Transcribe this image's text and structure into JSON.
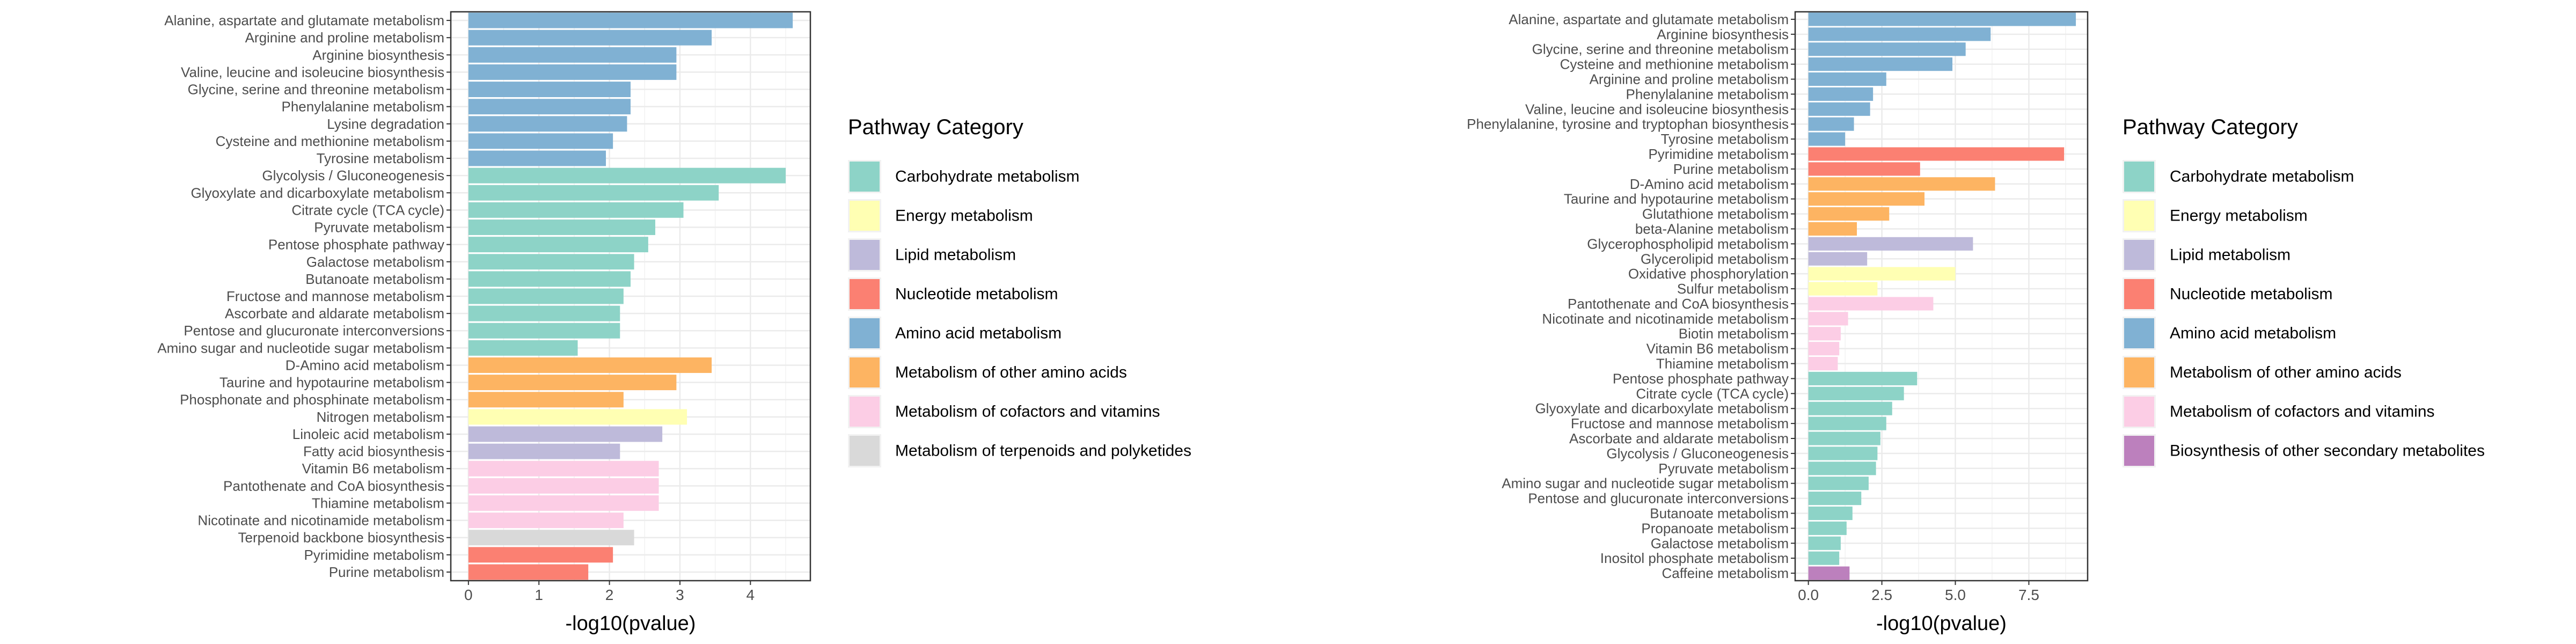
{
  "chart_data": [
    {
      "type": "bar",
      "orientation": "horizontal",
      "xlabel": "-log10(pvalue)",
      "ylabel": "",
      "xlim": [
        -0.25,
        4.85
      ],
      "xticks": [
        0,
        1,
        2,
        3,
        4
      ],
      "grid": true,
      "legend_title": "Pathway Category",
      "legend_position": "right",
      "legend": [
        {
          "name": "Carbohydrate metabolism",
          "color": "#8DD3C7"
        },
        {
          "name": "Energy metabolism",
          "color": "#FFFFB3"
        },
        {
          "name": "Lipid metabolism",
          "color": "#BEBADA"
        },
        {
          "name": "Nucleotide metabolism",
          "color": "#FB8072"
        },
        {
          "name": "Amino acid metabolism",
          "color": "#80B1D3"
        },
        {
          "name": "Metabolism of other amino acids",
          "color": "#FDB462"
        },
        {
          "name": "Metabolism of cofactors and vitamins",
          "color": "#FCCDE5"
        },
        {
          "name": "Metabolism of terpenoids and polyketides",
          "color": "#D9D9D9"
        }
      ],
      "bars": [
        {
          "label": "Alanine, aspartate and glutamate metabolism",
          "value": 4.6,
          "category": "Amino acid metabolism"
        },
        {
          "label": "Arginine and proline metabolism",
          "value": 3.45,
          "category": "Amino acid metabolism"
        },
        {
          "label": "Arginine biosynthesis",
          "value": 2.95,
          "category": "Amino acid metabolism"
        },
        {
          "label": "Valine, leucine and isoleucine biosynthesis",
          "value": 2.95,
          "category": "Amino acid metabolism"
        },
        {
          "label": "Glycine, serine and threonine metabolism",
          "value": 2.3,
          "category": "Amino acid metabolism"
        },
        {
          "label": "Phenylalanine metabolism",
          "value": 2.3,
          "category": "Amino acid metabolism"
        },
        {
          "label": "Lysine degradation",
          "value": 2.25,
          "category": "Amino acid metabolism"
        },
        {
          "label": "Cysteine and methionine metabolism",
          "value": 2.05,
          "category": "Amino acid metabolism"
        },
        {
          "label": "Tyrosine metabolism",
          "value": 1.95,
          "category": "Amino acid metabolism"
        },
        {
          "label": "Glycolysis / Gluconeogenesis",
          "value": 4.5,
          "category": "Carbohydrate metabolism"
        },
        {
          "label": "Glyoxylate and dicarboxylate metabolism",
          "value": 3.55,
          "category": "Carbohydrate metabolism"
        },
        {
          "label": "Citrate cycle (TCA cycle)",
          "value": 3.05,
          "category": "Carbohydrate metabolism"
        },
        {
          "label": "Pyruvate metabolism",
          "value": 2.65,
          "category": "Carbohydrate metabolism"
        },
        {
          "label": "Pentose phosphate pathway",
          "value": 2.55,
          "category": "Carbohydrate metabolism"
        },
        {
          "label": "Galactose metabolism",
          "value": 2.35,
          "category": "Carbohydrate metabolism"
        },
        {
          "label": "Butanoate metabolism",
          "value": 2.3,
          "category": "Carbohydrate metabolism"
        },
        {
          "label": "Fructose and mannose metabolism",
          "value": 2.2,
          "category": "Carbohydrate metabolism"
        },
        {
          "label": "Ascorbate and aldarate metabolism",
          "value": 2.15,
          "category": "Carbohydrate metabolism"
        },
        {
          "label": "Pentose and glucuronate interconversions",
          "value": 2.15,
          "category": "Carbohydrate metabolism"
        },
        {
          "label": "Amino sugar and nucleotide sugar metabolism",
          "value": 1.55,
          "category": "Carbohydrate metabolism"
        },
        {
          "label": "D-Amino acid metabolism",
          "value": 3.45,
          "category": "Metabolism of other amino acids"
        },
        {
          "label": "Taurine and hypotaurine metabolism",
          "value": 2.95,
          "category": "Metabolism of other amino acids"
        },
        {
          "label": "Phosphonate and phosphinate metabolism",
          "value": 2.2,
          "category": "Metabolism of other amino acids"
        },
        {
          "label": "Nitrogen metabolism",
          "value": 3.1,
          "category": "Energy metabolism"
        },
        {
          "label": "Linoleic acid metabolism",
          "value": 2.75,
          "category": "Lipid metabolism"
        },
        {
          "label": "Fatty acid biosynthesis",
          "value": 2.15,
          "category": "Lipid metabolism"
        },
        {
          "label": "Vitamin B6 metabolism",
          "value": 2.7,
          "category": "Metabolism of cofactors and vitamins"
        },
        {
          "label": "Pantothenate and CoA biosynthesis",
          "value": 2.7,
          "category": "Metabolism of cofactors and vitamins"
        },
        {
          "label": "Thiamine metabolism",
          "value": 2.7,
          "category": "Metabolism of cofactors and vitamins"
        },
        {
          "label": "Nicotinate and nicotinamide metabolism",
          "value": 2.2,
          "category": "Metabolism of cofactors and vitamins"
        },
        {
          "label": "Terpenoid backbone biosynthesis",
          "value": 2.35,
          "category": "Metabolism of terpenoids and polyketides"
        },
        {
          "label": "Pyrimidine metabolism",
          "value": 2.05,
          "category": "Nucleotide metabolism"
        },
        {
          "label": "Purine metabolism",
          "value": 1.7,
          "category": "Nucleotide metabolism"
        }
      ]
    },
    {
      "type": "bar",
      "orientation": "horizontal",
      "xlabel": "-log10(pvalue)",
      "ylabel": "",
      "xlim": [
        -0.45,
        9.5
      ],
      "xticks": [
        0.0,
        2.5,
        5.0,
        7.5
      ],
      "xtick_labels": [
        "0.0",
        "2.5",
        "5.0",
        "7.5"
      ],
      "grid": true,
      "legend_title": "Pathway Category",
      "legend_position": "right",
      "legend": [
        {
          "name": "Carbohydrate metabolism",
          "color": "#8DD3C7"
        },
        {
          "name": "Energy metabolism",
          "color": "#FFFFB3"
        },
        {
          "name": "Lipid metabolism",
          "color": "#BEBADA"
        },
        {
          "name": "Nucleotide metabolism",
          "color": "#FB8072"
        },
        {
          "name": "Amino acid metabolism",
          "color": "#80B1D3"
        },
        {
          "name": "Metabolism of other amino acids",
          "color": "#FDB462"
        },
        {
          "name": "Metabolism of cofactors and vitamins",
          "color": "#FCCDE5"
        },
        {
          "name": "Biosynthesis of other secondary metabolites",
          "color": "#BC80BD"
        }
      ],
      "bars": [
        {
          "label": "Alanine, aspartate and glutamate metabolism",
          "value": 9.1,
          "category": "Amino acid metabolism"
        },
        {
          "label": "Arginine biosynthesis",
          "value": 6.2,
          "category": "Amino acid metabolism"
        },
        {
          "label": "Glycine, serine and threonine metabolism",
          "value": 5.35,
          "category": "Amino acid metabolism"
        },
        {
          "label": "Cysteine and methionine metabolism",
          "value": 4.9,
          "category": "Amino acid metabolism"
        },
        {
          "label": "Arginine and proline metabolism",
          "value": 2.65,
          "category": "Amino acid metabolism"
        },
        {
          "label": "Phenylalanine metabolism",
          "value": 2.2,
          "category": "Amino acid metabolism"
        },
        {
          "label": "Valine, leucine and isoleucine biosynthesis",
          "value": 2.1,
          "category": "Amino acid metabolism"
        },
        {
          "label": "Phenylalanine, tyrosine and tryptophan biosynthesis",
          "value": 1.55,
          "category": "Amino acid metabolism"
        },
        {
          "label": "Tyrosine metabolism",
          "value": 1.25,
          "category": "Amino acid metabolism"
        },
        {
          "label": "Pyrimidine metabolism",
          "value": 8.7,
          "category": "Nucleotide metabolism"
        },
        {
          "label": "Purine metabolism",
          "value": 3.8,
          "category": "Nucleotide metabolism"
        },
        {
          "label": "D-Amino acid metabolism",
          "value": 6.35,
          "category": "Metabolism of other amino acids"
        },
        {
          "label": "Taurine and hypotaurine metabolism",
          "value": 3.95,
          "category": "Metabolism of other amino acids"
        },
        {
          "label": "Glutathione metabolism",
          "value": 2.75,
          "category": "Metabolism of other amino acids"
        },
        {
          "label": "beta-Alanine metabolism",
          "value": 1.65,
          "category": "Metabolism of other amino acids"
        },
        {
          "label": "Glycerophospholipid metabolism",
          "value": 5.6,
          "category": "Lipid metabolism"
        },
        {
          "label": "Glycerolipid metabolism",
          "value": 2.0,
          "category": "Lipid metabolism"
        },
        {
          "label": "Oxidative phosphorylation",
          "value": 5.0,
          "category": "Energy metabolism"
        },
        {
          "label": "Sulfur metabolism",
          "value": 2.35,
          "category": "Energy metabolism"
        },
        {
          "label": "Pantothenate and CoA biosynthesis",
          "value": 4.25,
          "category": "Metabolism of cofactors and vitamins"
        },
        {
          "label": "Nicotinate and nicotinamide metabolism",
          "value": 1.35,
          "category": "Metabolism of cofactors and vitamins"
        },
        {
          "label": "Biotin metabolism",
          "value": 1.1,
          "category": "Metabolism of cofactors and vitamins"
        },
        {
          "label": "Vitamin B6 metabolism",
          "value": 1.05,
          "category": "Metabolism of cofactors and vitamins"
        },
        {
          "label": "Thiamine metabolism",
          "value": 1.0,
          "category": "Metabolism of cofactors and vitamins"
        },
        {
          "label": "Pentose phosphate pathway",
          "value": 3.7,
          "category": "Carbohydrate metabolism"
        },
        {
          "label": "Citrate cycle (TCA cycle)",
          "value": 3.25,
          "category": "Carbohydrate metabolism"
        },
        {
          "label": "Glyoxylate and dicarboxylate metabolism",
          "value": 2.85,
          "category": "Carbohydrate metabolism"
        },
        {
          "label": "Fructose and mannose metabolism",
          "value": 2.65,
          "category": "Carbohydrate metabolism"
        },
        {
          "label": "Ascorbate and aldarate metabolism",
          "value": 2.45,
          "category": "Carbohydrate metabolism"
        },
        {
          "label": "Glycolysis / Gluconeogenesis",
          "value": 2.35,
          "category": "Carbohydrate metabolism"
        },
        {
          "label": "Pyruvate metabolism",
          "value": 2.3,
          "category": "Carbohydrate metabolism"
        },
        {
          "label": "Amino sugar and nucleotide sugar metabolism",
          "value": 2.05,
          "category": "Carbohydrate metabolism"
        },
        {
          "label": "Pentose and glucuronate interconversions",
          "value": 1.8,
          "category": "Carbohydrate metabolism"
        },
        {
          "label": "Butanoate metabolism",
          "value": 1.5,
          "category": "Carbohydrate metabolism"
        },
        {
          "label": "Propanoate metabolism",
          "value": 1.3,
          "category": "Carbohydrate metabolism"
        },
        {
          "label": "Galactose metabolism",
          "value": 1.1,
          "category": "Carbohydrate metabolism"
        },
        {
          "label": "Inositol phosphate metabolism",
          "value": 1.05,
          "category": "Carbohydrate metabolism"
        },
        {
          "label": "Caffeine metabolism",
          "value": 1.4,
          "category": "Biosynthesis of other secondary metabolites"
        }
      ]
    }
  ]
}
